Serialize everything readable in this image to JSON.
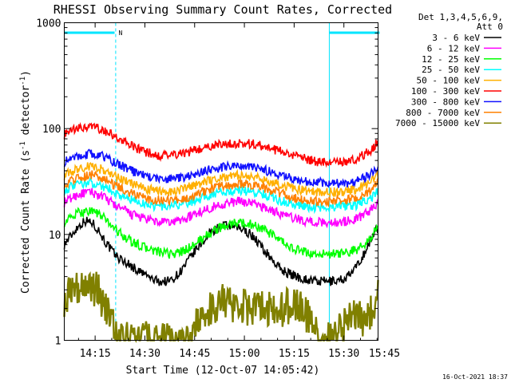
{
  "chart_data": {
    "type": "line",
    "title": "RHESSI Observing Summary Count Rates, Corrected",
    "xlabel": "Start Time (12-Oct-07 14:05:42)",
    "ylabel_main": "Corrected Count Rate (s",
    "ylabel_sup1": "-1",
    "ylabel_mid": " detector",
    "ylabel_sup2": "-1",
    "ylabel_end": ")",
    "ylog": true,
    "ylim": [
      1,
      1000
    ],
    "xlim_minutes": [
      5.7,
      100.3
    ],
    "yticks": [
      {
        "value": 1,
        "label": "1"
      },
      {
        "value": 10,
        "label": "10"
      },
      {
        "value": 100,
        "label": "100"
      },
      {
        "value": 1000,
        "label": "1000"
      }
    ],
    "xticks": [
      {
        "minute": 15,
        "label": "14:15"
      },
      {
        "minute": 30,
        "label": "14:30"
      },
      {
        "minute": 45,
        "label": "14:45"
      },
      {
        "minute": 60,
        "label": "15:00"
      },
      {
        "minute": 75,
        "label": "15:15"
      },
      {
        "minute": 90,
        "label": "15:30"
      },
      {
        "minute": 105,
        "label": "15:45"
      }
    ],
    "legend_header": [
      "Det 1,3,4,5,6,9,",
      "Att 0"
    ],
    "legend_position": "right",
    "night_flag": {
      "label": "N",
      "segments": [
        [
          5.7,
          21.2
        ],
        [
          85.6,
          100.3
        ]
      ],
      "color": "#00e5ff"
    },
    "series": [
      {
        "name": "3 - 6 keV",
        "color": "#000000",
        "x": [
          5.7,
          8,
          10,
          12,
          14,
          16,
          18,
          20,
          22,
          24,
          26,
          28,
          30,
          32,
          34,
          36,
          38,
          40,
          42,
          44,
          46,
          48,
          50,
          52,
          54,
          56,
          58,
          60,
          62,
          64,
          66,
          68,
          70,
          72,
          74,
          76,
          78,
          80,
          82,
          84,
          86,
          88,
          90,
          92,
          94,
          96,
          98,
          100.3
        ],
        "values": [
          8,
          10,
          12,
          13.5,
          13,
          11,
          8.5,
          7,
          6,
          5.5,
          5,
          4.5,
          4.2,
          3.8,
          3.6,
          3.6,
          3.7,
          4.2,
          5,
          6.2,
          7.5,
          9,
          10.5,
          11.5,
          12,
          12,
          11.5,
          11,
          10,
          8.5,
          7,
          6,
          5,
          4.5,
          4.2,
          4,
          3.8,
          3.7,
          3.6,
          3.6,
          3.6,
          3.7,
          3.8,
          4.2,
          5,
          6.5,
          8.5,
          12
        ]
      },
      {
        "name": "6 - 12 keV",
        "color": "#ff00ff",
        "x": [
          5.7,
          10,
          14,
          18,
          22,
          26,
          30,
          34,
          38,
          42,
          46,
          50,
          54,
          58,
          62,
          66,
          70,
          74,
          78,
          82,
          86,
          90,
          94,
          98,
          100.3
        ],
        "values": [
          20,
          24,
          25,
          22,
          18,
          15.5,
          14,
          13,
          13,
          14,
          16,
          18,
          19.5,
          20.5,
          20,
          18,
          16,
          14.5,
          13.5,
          13,
          13,
          13.2,
          14,
          17,
          20
        ]
      },
      {
        "name": "12 - 25 keV",
        "color": "#00ff00",
        "x": [
          5.7,
          10,
          14,
          18,
          22,
          26,
          30,
          34,
          38,
          42,
          46,
          50,
          54,
          58,
          62,
          66,
          70,
          74,
          78,
          82,
          86,
          90,
          94,
          98,
          100.3
        ],
        "values": [
          13,
          16,
          17,
          14,
          10.5,
          8.5,
          7.5,
          6.8,
          6.5,
          7,
          8.5,
          10.5,
          12,
          13,
          12.5,
          11,
          9,
          7.5,
          6.8,
          6.5,
          6.5,
          6.6,
          7.2,
          9,
          12
        ]
      },
      {
        "name": "25 - 50 keV",
        "color": "#00ffff",
        "x": [
          5.7,
          10,
          14,
          18,
          22,
          26,
          30,
          34,
          38,
          42,
          46,
          50,
          54,
          58,
          62,
          66,
          70,
          74,
          78,
          82,
          86,
          90,
          94,
          98,
          100.3
        ],
        "values": [
          26,
          30,
          31,
          28,
          24,
          21,
          19.5,
          18.5,
          18.5,
          19.5,
          21.5,
          24,
          25.5,
          26,
          25.5,
          24,
          21.5,
          19.5,
          18.5,
          18,
          18,
          18.3,
          19,
          22,
          26
        ]
      },
      {
        "name": "50 - 100 keV",
        "color": "#ffb000",
        "x": [
          5.7,
          10,
          14,
          18,
          22,
          26,
          30,
          34,
          38,
          42,
          46,
          50,
          54,
          58,
          62,
          66,
          70,
          74,
          78,
          82,
          86,
          90,
          94,
          98,
          100.3
        ],
        "values": [
          36,
          42,
          44,
          40,
          34,
          30,
          27,
          25.5,
          25.5,
          27,
          30,
          33,
          35,
          36,
          35,
          33,
          30,
          27.5,
          26,
          25,
          25,
          25.5,
          27,
          31,
          37
        ]
      },
      {
        "name": "100 - 300 keV",
        "color": "#ff0000",
        "x": [
          5.7,
          10,
          14,
          18,
          22,
          26,
          30,
          34,
          38,
          42,
          46,
          50,
          54,
          58,
          62,
          66,
          70,
          74,
          78,
          82,
          86,
          90,
          94,
          98,
          100.3
        ],
        "values": [
          88,
          100,
          104,
          95,
          80,
          68,
          60,
          56,
          56,
          59,
          64,
          69,
          72,
          73,
          72,
          68,
          62,
          56,
          52,
          49,
          48,
          48,
          52,
          62,
          76
        ]
      },
      {
        "name": "300 - 800 keV",
        "color": "#1010ff",
        "x": [
          5.7,
          10,
          14,
          18,
          22,
          26,
          30,
          34,
          38,
          42,
          46,
          50,
          54,
          58,
          62,
          66,
          70,
          74,
          78,
          82,
          86,
          90,
          94,
          98,
          100.3
        ],
        "values": [
          48,
          56,
          58,
          54,
          46,
          40,
          36,
          33.5,
          33.5,
          35,
          38.5,
          41.5,
          43.5,
          44,
          43,
          40.5,
          37,
          34,
          32,
          31,
          30.5,
          30.5,
          32,
          37,
          44
        ]
      },
      {
        "name": "800 - 7000 keV",
        "color": "#ff8000",
        "x": [
          5.7,
          10,
          14,
          18,
          22,
          26,
          30,
          34,
          38,
          42,
          46,
          50,
          54,
          58,
          62,
          66,
          70,
          74,
          78,
          82,
          86,
          90,
          94,
          98,
          100.3
        ],
        "values": [
          30,
          35,
          37,
          33,
          28,
          24.5,
          22,
          21,
          21,
          22,
          24.5,
          27,
          29,
          30,
          29.5,
          27.5,
          25,
          22.5,
          21,
          20.5,
          20.5,
          21,
          22,
          26,
          31
        ]
      },
      {
        "name": "7000 - 15000 keV",
        "color": "#808000",
        "x": [
          5.7,
          8,
          10,
          12,
          14,
          16,
          18,
          20,
          21,
          22,
          26,
          30,
          34,
          38,
          44,
          46,
          50,
          54,
          58,
          62,
          66,
          70,
          74,
          78,
          80,
          82,
          84,
          86,
          88,
          90,
          92,
          94,
          96,
          98,
          100.3
        ],
        "values": [
          2.5,
          3.2,
          3.4,
          3.0,
          3.3,
          2.8,
          2.2,
          1.6,
          1.2,
          1,
          1,
          1,
          1,
          1,
          1,
          1.6,
          2.1,
          2.3,
          2.0,
          2.1,
          2.0,
          1.9,
          2.2,
          1.9,
          1.6,
          1.3,
          1,
          1,
          1.2,
          1.3,
          1.6,
          1.8,
          1.4,
          1.8,
          2.6
        ]
      }
    ]
  },
  "footer": {
    "timestamp": "16-Oct-2021 18:37"
  }
}
